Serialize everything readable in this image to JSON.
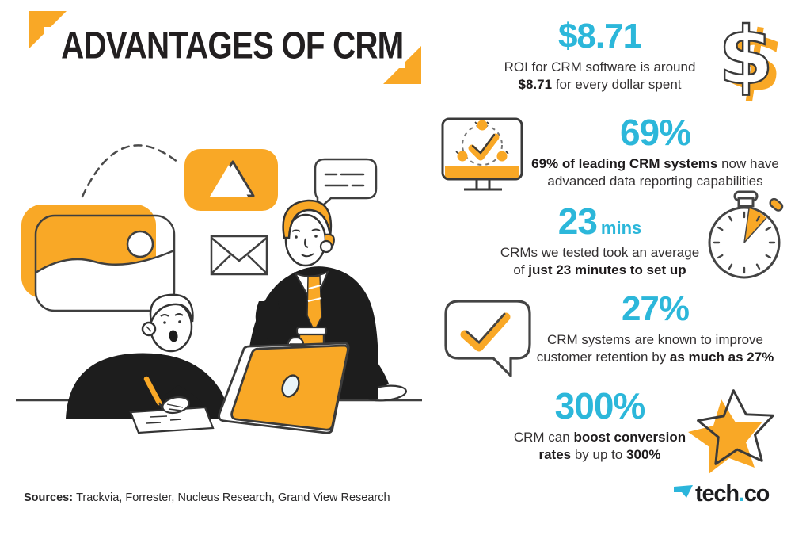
{
  "colors": {
    "orange": "#F9A826",
    "cyan": "#2CB7DA",
    "ink": "#221F20"
  },
  "header": {
    "title": "ADVANTAGES OF CRM"
  },
  "illustration": {
    "icons": [
      "photo-icon",
      "play-icon",
      "chat-bubble-icon",
      "envelope-icon",
      "laptop",
      "sitting-person",
      "standing-person",
      "dashed-arc"
    ]
  },
  "stats": [
    {
      "value": "$8.71",
      "desc_html": "ROI for CRM software is around<br><b>$8.71</b> for every dollar spent",
      "icon": "dollar-sign-icon",
      "icon_side": "right"
    },
    {
      "value": "69%",
      "desc_html": "<b>69% of leading CRM systems</b> now have<br>advanced data reporting capabilities",
      "icon": "monitor-analytics-icon",
      "icon_side": "left"
    },
    {
      "value": "23",
      "suffix": "mins",
      "desc_html": "CRMs we tested took an average<br>of <b>just 23 minutes to set up</b>",
      "icon": "stopwatch-icon",
      "icon_side": "right"
    },
    {
      "value": "27%",
      "desc_html": "CRM systems are known to improve<br>customer retention by <b>as much as 27%</b>",
      "icon": "chat-check-icon",
      "icon_side": "left"
    },
    {
      "value": "300%",
      "desc_html": "CRM can <b>boost conversion</b><br><b>rates</b> by up to <b>300%</b>",
      "icon": "star-icon",
      "icon_side": "right"
    }
  ],
  "footer": {
    "sources_label": "Sources:",
    "sources_text": "Trackvia, Forrester, Nucleus Research, Grand View Research",
    "logo": {
      "mark": "tech-co-arrow-icon",
      "part1": "tech",
      "dot": ".",
      "part2": "co"
    }
  }
}
